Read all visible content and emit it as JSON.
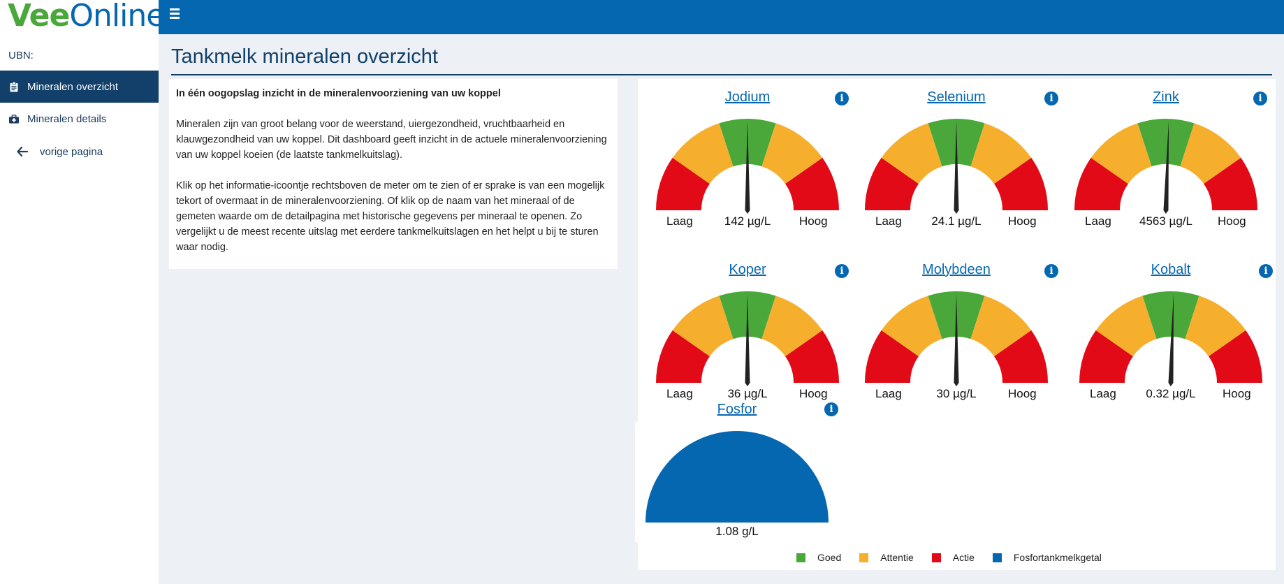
{
  "brand": {
    "part1": "Vee",
    "part2": "Online"
  },
  "sidebar": {
    "ubn_label": "UBN:",
    "items": [
      {
        "label": "Mineralen overzicht",
        "icon": "clipboard-icon",
        "active": true
      },
      {
        "label": "Mineralen details",
        "icon": "medkit-icon",
        "active": false
      }
    ],
    "back_label": "vorige pagina"
  },
  "page_title": "Tankmelk mineralen overzicht",
  "intro": {
    "lead": "In één oogopslag inzicht in de mineralenvoorziening van uw koppel",
    "p1": "Mineralen zijn van groot belang voor de weerstand, uiergezondheid, vruchtbaarheid en klauwgezondheid van uw koppel. Dit dashboard geeft inzicht in de actuele mineralenvoorziening van uw koppel koeien (de laatste tankmelkuitslag).",
    "p2": "Klik op het informatie-icoontje rechtsboven de meter om te zien of er sprake is van een mogelijk tekort of overmaat in de mineralenvoorziening. Of klik op de naam van het mineraal of de gemeten waarde om de detailpagina met historische gegevens per mineraal te openen. Zo vergelijkt u de meest recente uitslag met eerdere tankmelkuitslagen en het helpt u bij te sturen waar nodig."
  },
  "gauge_labels": {
    "low": "Laag",
    "high": "Hoog"
  },
  "colors": {
    "goed": "#4aa83b",
    "attentie": "#f6ae2d",
    "actie": "#e10a16",
    "fosfor": "#0667b1",
    "needle": "#222222"
  },
  "gauges": [
    {
      "name": "Jodium",
      "value": "142 µg/L",
      "needle": 0.5
    },
    {
      "name": "Selenium",
      "value": "24.1 µg/L",
      "needle": 0.5
    },
    {
      "name": "Zink",
      "value": "4563 µg/L",
      "needle": 0.51
    },
    {
      "name": "Koper",
      "value": "36 µg/L",
      "needle": 0.5
    },
    {
      "name": "Molybdeen",
      "value": "30 µg/L",
      "needle": 0.5
    },
    {
      "name": "Kobalt",
      "value": "0.32 µg/L",
      "needle": 0.51
    }
  ],
  "fosfor": {
    "name": "Fosfor",
    "value": "1.08 g/L"
  },
  "legend": [
    {
      "label": "Goed",
      "color": "#4aa83b"
    },
    {
      "label": "Attentie",
      "color": "#f6ae2d"
    },
    {
      "label": "Actie",
      "color": "#e10a16"
    },
    {
      "label": "Fosfortankmelkgetal",
      "color": "#0667b1"
    }
  ]
}
